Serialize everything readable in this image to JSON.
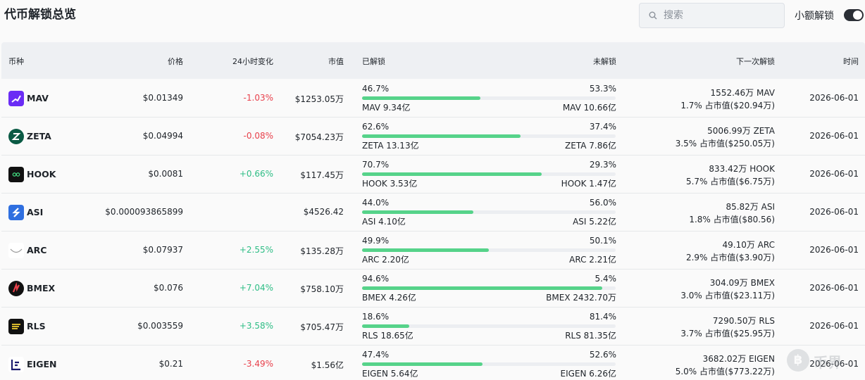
{
  "page": {
    "title": "代币解锁总览"
  },
  "search": {
    "placeholder": "搜索"
  },
  "toggle": {
    "label": "小额解锁",
    "on": true
  },
  "columns": {
    "coin": "币种",
    "price": "价格",
    "change": "24小时变化",
    "market_cap": "市值",
    "unlocked": "已解锁",
    "locked": "未解锁",
    "next_unlock": "下一次解锁",
    "time": "时间"
  },
  "colors": {
    "up": "#2ebd85",
    "down": "#e8404b",
    "progress": "#56d38a",
    "header_bg": "#eef0f3"
  },
  "rows": [
    {
      "symbol": "MAV",
      "icon": "mav-logo-icon",
      "price": "$0.01349",
      "change": "-1.03%",
      "direction": "down",
      "market_cap": "$1253.05万",
      "unlocked_pct": "46.7%",
      "unlocked_fraction": 0.467,
      "locked_pct": "53.3%",
      "unlocked_amount": "MAV 9.34亿",
      "locked_amount": "MAV 10.66亿",
      "next_amount": "1552.46万 MAV",
      "next_detail": "1.7% 占市值($20.94万)",
      "time": "2026-06-01"
    },
    {
      "symbol": "ZETA",
      "icon": "zeta-logo-icon",
      "price": "$0.04994",
      "change": "-0.08%",
      "direction": "down",
      "market_cap": "$7054.23万",
      "unlocked_pct": "62.6%",
      "unlocked_fraction": 0.626,
      "locked_pct": "37.4%",
      "unlocked_amount": "ZETA 13.13亿",
      "locked_amount": "ZETA 7.86亿",
      "next_amount": "5006.99万 ZETA",
      "next_detail": "3.5% 占市值($250.05万)",
      "time": "2026-06-01"
    },
    {
      "symbol": "HOOK",
      "icon": "hook-logo-icon",
      "price": "$0.0081",
      "change": "+0.66%",
      "direction": "up",
      "market_cap": "$117.45万",
      "unlocked_pct": "70.7%",
      "unlocked_fraction": 0.707,
      "locked_pct": "29.3%",
      "unlocked_amount": "HOOK 3.53亿",
      "locked_amount": "HOOK 1.47亿",
      "next_amount": "833.42万 HOOK",
      "next_detail": "5.7% 占市值($6.75万)",
      "time": "2026-06-01"
    },
    {
      "symbol": "ASI",
      "icon": "asi-logo-icon",
      "price": "$0.000093865899",
      "change": "",
      "direction": "none",
      "market_cap": "$4526.42",
      "unlocked_pct": "44.0%",
      "unlocked_fraction": 0.44,
      "locked_pct": "56.0%",
      "unlocked_amount": "ASI 4.10亿",
      "locked_amount": "ASI 5.22亿",
      "next_amount": "85.82万 ASI",
      "next_detail": "1.8% 占市值($80.56)",
      "time": "2026-06-01"
    },
    {
      "symbol": "ARC",
      "icon": "arc-logo-icon",
      "price": "$0.07937",
      "change": "+2.55%",
      "direction": "up",
      "market_cap": "$135.28万",
      "unlocked_pct": "49.9%",
      "unlocked_fraction": 0.499,
      "locked_pct": "50.1%",
      "unlocked_amount": "ARC 2.20亿",
      "locked_amount": "ARC 2.21亿",
      "next_amount": "49.10万 ARC",
      "next_detail": "2.9% 占市值($3.90万)",
      "time": "2026-06-01"
    },
    {
      "symbol": "BMEX",
      "icon": "bmex-logo-icon",
      "price": "$0.076",
      "change": "+7.04%",
      "direction": "up",
      "market_cap": "$758.10万",
      "unlocked_pct": "94.6%",
      "unlocked_fraction": 0.946,
      "locked_pct": "5.4%",
      "unlocked_amount": "BMEX 4.26亿",
      "locked_amount": "BMEX 2432.70万",
      "next_amount": "304.09万 BMEX",
      "next_detail": "3.0% 占市值($23.11万)",
      "time": "2026-06-01"
    },
    {
      "symbol": "RLS",
      "icon": "rls-logo-icon",
      "price": "$0.003559",
      "change": "+3.58%",
      "direction": "up",
      "market_cap": "$705.47万",
      "unlocked_pct": "18.6%",
      "unlocked_fraction": 0.186,
      "locked_pct": "81.4%",
      "unlocked_amount": "RLS 18.65亿",
      "locked_amount": "RLS 81.35亿",
      "next_amount": "7290.50万 RLS",
      "next_detail": "3.7% 占市值($25.95万)",
      "time": "2026-06-01"
    },
    {
      "symbol": "EIGEN",
      "icon": "eigen-logo-icon",
      "price": "$0.21",
      "change": "-3.49%",
      "direction": "down",
      "market_cap": "$1.56亿",
      "unlocked_pct": "47.4%",
      "unlocked_fraction": 0.474,
      "locked_pct": "52.6%",
      "unlocked_amount": "EIGEN 5.64亿",
      "locked_amount": "EIGEN 6.26亿",
      "next_amount": "3682.02万 EIGEN",
      "next_detail": "5.0% 占市值($773.22万)",
      "time": "2026-06-01"
    }
  ],
  "watermark": {
    "text": "币界",
    "icon": "bijie-coin-icon"
  }
}
